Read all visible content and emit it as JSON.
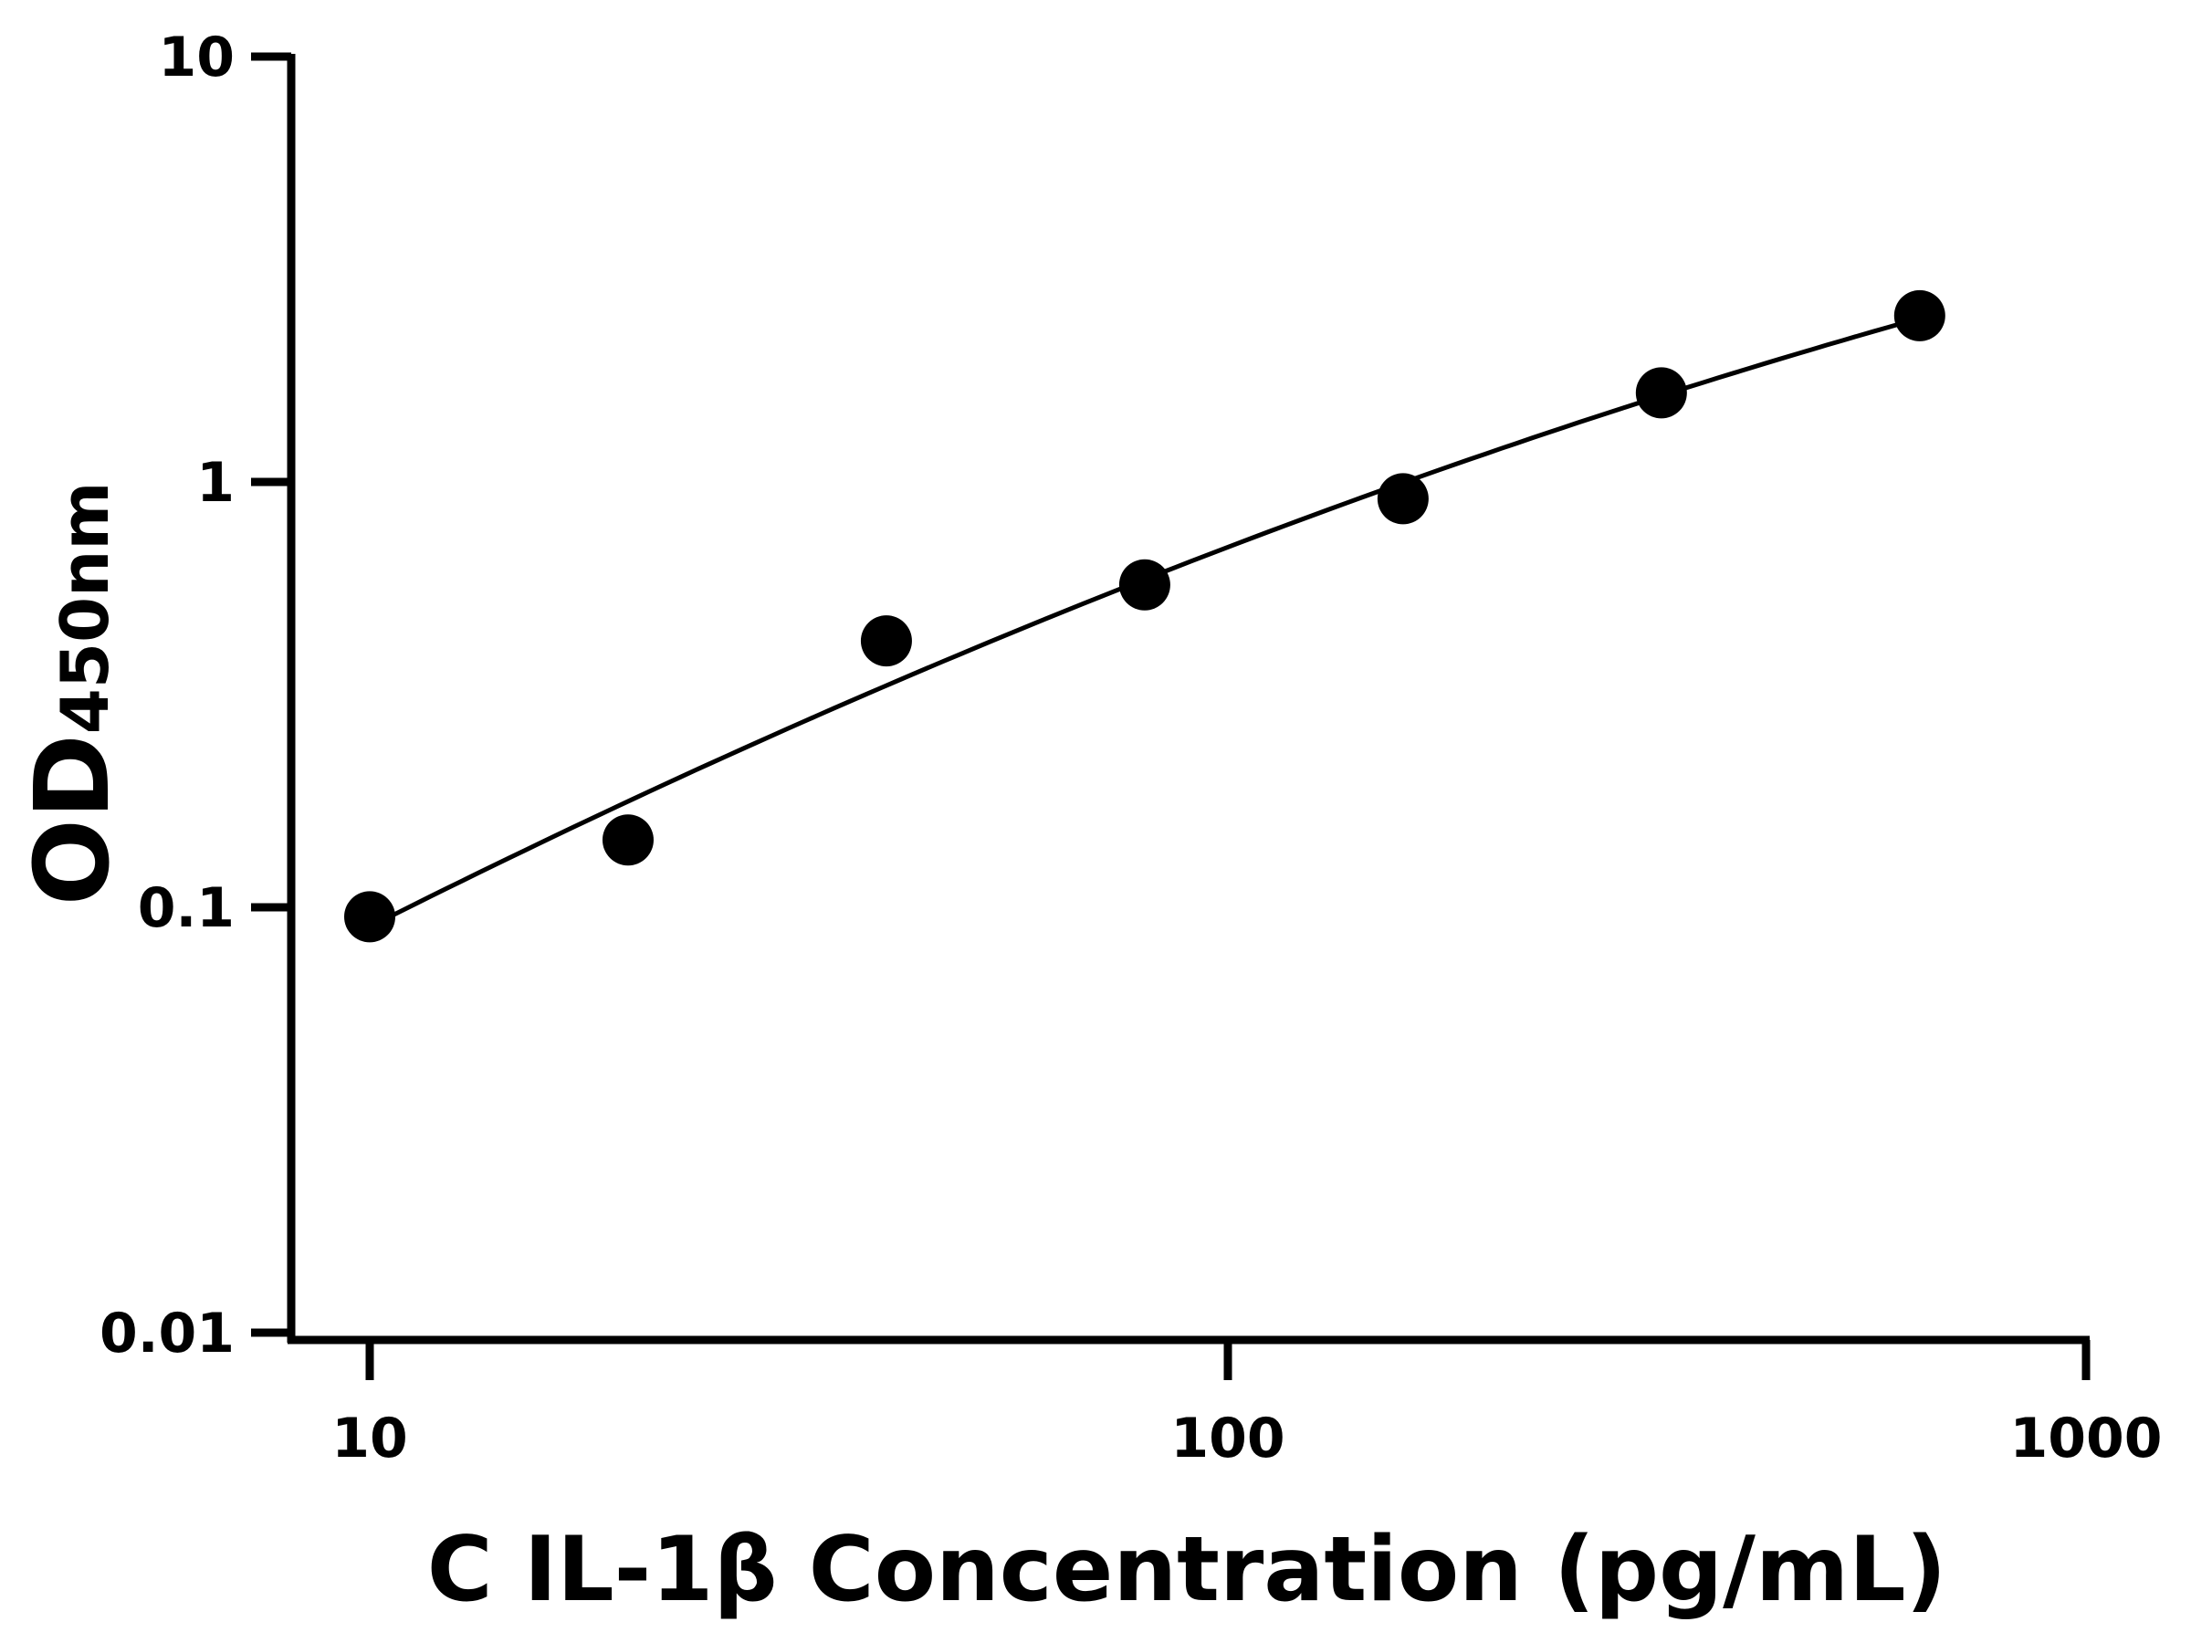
{
  "chart_data": {
    "type": "scatter",
    "xlabel": "C IL-1β Concentration (pg/mL)",
    "ylabel": {
      "main": "OD",
      "subscript": "450nm"
    },
    "x_scale": "log",
    "y_scale": "log",
    "xlim": [
      8,
      1000
    ],
    "ylim": [
      0.01,
      10
    ],
    "x_ticks": [
      "10",
      "100",
      "1000"
    ],
    "y_ticks": [
      "0.01",
      "0.1",
      "1",
      "10"
    ],
    "grid": false,
    "series": [
      {
        "x": [
          10,
          20,
          40,
          80,
          160,
          320,
          640
        ],
        "y": [
          0.095,
          0.144,
          0.423,
          0.573,
          0.913,
          1.62,
          2.46
        ],
        "marker": "filled-circle",
        "fit_line": true
      }
    ],
    "colors": {
      "marks": "#000000"
    }
  }
}
